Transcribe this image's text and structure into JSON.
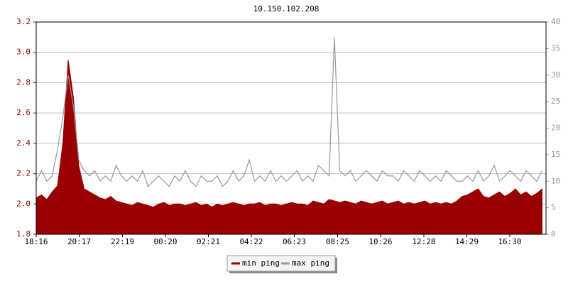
{
  "chart_data": {
    "type": "line",
    "title": "10.150.102.208",
    "x": [
      0,
      15,
      30,
      45,
      60,
      75,
      90,
      105,
      120,
      135,
      150,
      165,
      180,
      195,
      210,
      225,
      240,
      255,
      270,
      285,
      300,
      315,
      330,
      345,
      360,
      375,
      390,
      405,
      420,
      435,
      450,
      465,
      480,
      495,
      510,
      525,
      540,
      555,
      570,
      585,
      600,
      615,
      630,
      645,
      660,
      675,
      690,
      705,
      720,
      735,
      750,
      765,
      780,
      795,
      810,
      825,
      840,
      855,
      870,
      885,
      900,
      915,
      930,
      945,
      960,
      975,
      990,
      1005,
      1020,
      1035,
      1050,
      1065,
      1080,
      1095,
      1110,
      1125,
      1140,
      1155,
      1170,
      1185,
      1200,
      1215,
      1230,
      1245,
      1260,
      1275,
      1290,
      1305,
      1320,
      1335,
      1350,
      1365,
      1380,
      1395,
      1410,
      1425
    ],
    "xlim": [
      0,
      1436
    ],
    "xticks": [
      {
        "value": 0,
        "label": "18:16"
      },
      {
        "value": 121,
        "label": "20:17"
      },
      {
        "value": 243,
        "label": "22:19"
      },
      {
        "value": 364,
        "label": "00:20"
      },
      {
        "value": 485,
        "label": "02:21"
      },
      {
        "value": 606,
        "label": "04:22"
      },
      {
        "value": 727,
        "label": "06:23"
      },
      {
        "value": 849,
        "label": "08:25"
      },
      {
        "value": 970,
        "label": "10:26"
      },
      {
        "value": 1092,
        "label": "12:28"
      },
      {
        "value": 1213,
        "label": "14:29"
      },
      {
        "value": 1334,
        "label": "16:30"
      }
    ],
    "ylim": [
      1.8,
      3.2
    ],
    "yticks": [
      {
        "value": 1.8,
        "label": "1.8"
      },
      {
        "value": 2.0,
        "label": "2.0"
      },
      2.2,
      2.4,
      2.6,
      2.8,
      {
        "value": 3.0,
        "label": "3.0"
      },
      3.2
    ],
    "y2lim": [
      0,
      40
    ],
    "y2ticks": [
      0,
      5,
      10,
      15,
      20,
      25,
      30,
      35,
      40
    ],
    "grid": true,
    "series": [
      {
        "name": "min ping",
        "color": "#990000",
        "values": [
          2.04,
          2.06,
          2.03,
          2.08,
          2.12,
          2.4,
          2.95,
          2.7,
          2.25,
          2.1,
          2.08,
          2.06,
          2.04,
          2.03,
          2.05,
          2.02,
          2.01,
          2.0,
          1.99,
          2.01,
          2.0,
          1.99,
          1.98,
          2.0,
          2.01,
          1.99,
          2.0,
          2.0,
          1.99,
          2.0,
          2.01,
          1.99,
          2.0,
          1.98,
          2.0,
          1.99,
          2.0,
          2.01,
          2.0,
          1.99,
          2.0,
          2.0,
          2.01,
          1.99,
          2.0,
          2.0,
          1.99,
          2.0,
          2.01,
          2.0,
          2.0,
          1.99,
          2.02,
          2.01,
          2.0,
          2.03,
          2.02,
          2.01,
          2.02,
          2.01,
          2.0,
          2.02,
          2.01,
          2.0,
          2.01,
          2.02,
          2.0,
          2.01,
          2.02,
          2.0,
          2.01,
          2.0,
          2.01,
          2.02,
          2.0,
          2.01,
          2.0,
          2.01,
          2.0,
          2.02,
          2.05,
          2.06,
          2.08,
          2.1,
          2.05,
          2.04,
          2.06,
          2.08,
          2.05,
          2.07,
          2.1,
          2.06,
          2.08,
          2.05,
          2.07,
          2.1
        ]
      },
      {
        "name": "max ping",
        "color": "#999999",
        "axis": "y2",
        "values": [
          10,
          12,
          10,
          11,
          16,
          22,
          30,
          24,
          14,
          12,
          11,
          12,
          10,
          11,
          10,
          13,
          11,
          10,
          11,
          10,
          12,
          9,
          10,
          11,
          10,
          9,
          11,
          10,
          12,
          10,
          9,
          11,
          10,
          10,
          11,
          9,
          10,
          12,
          10,
          11,
          14,
          10,
          11,
          10,
          12,
          10,
          11,
          10,
          11,
          12,
          10,
          11,
          10,
          13,
          12,
          11,
          37,
          12,
          11,
          12,
          10,
          11,
          12,
          11,
          10,
          12,
          11,
          11,
          10,
          12,
          11,
          10,
          12,
          11,
          10,
          11,
          10,
          12,
          11,
          10,
          10,
          11,
          10,
          12,
          10,
          11,
          13,
          10,
          11,
          12,
          11,
          10,
          12,
          11,
          10,
          12
        ]
      }
    ],
    "legend": "bottom"
  }
}
